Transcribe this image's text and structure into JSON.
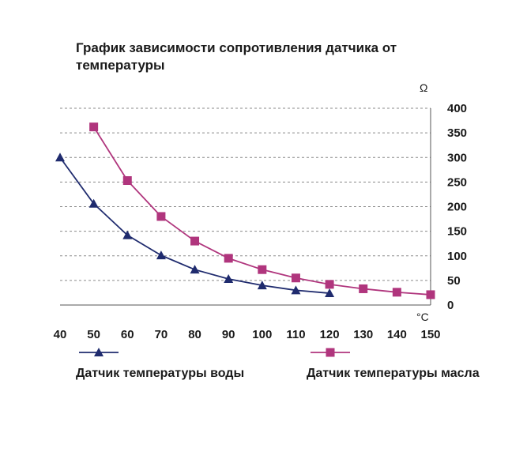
{
  "chart_data": {
    "type": "line",
    "title": "График зависимости сопротивления датчика от температуры",
    "xlabel": "°C",
    "ylabel": "Ω",
    "x_ticks": [
      40,
      50,
      60,
      70,
      80,
      90,
      100,
      110,
      120,
      130,
      140,
      150
    ],
    "y_ticks": [
      0,
      50,
      100,
      150,
      200,
      250,
      300,
      350,
      400
    ],
    "xlim": [
      40,
      150
    ],
    "ylim": [
      0,
      400
    ],
    "grid": true,
    "legend_placement": "bottom",
    "series": [
      {
        "name": "Датчик температуры воды",
        "color": "#1f2b6e",
        "marker": "triangle",
        "x": [
          40,
          50,
          60,
          70,
          80,
          90,
          100,
          110,
          120
        ],
        "y": [
          300,
          206,
          142,
          101,
          72,
          53,
          40,
          30,
          24
        ]
      },
      {
        "name": "Датчик температуры масла",
        "color": "#b0357d",
        "marker": "square",
        "x": [
          50,
          60,
          70,
          80,
          90,
          100,
          110,
          120,
          130,
          140,
          150
        ],
        "y": [
          362,
          253,
          180,
          130,
          95,
          72,
          55,
          42,
          33,
          26,
          21
        ]
      }
    ]
  }
}
